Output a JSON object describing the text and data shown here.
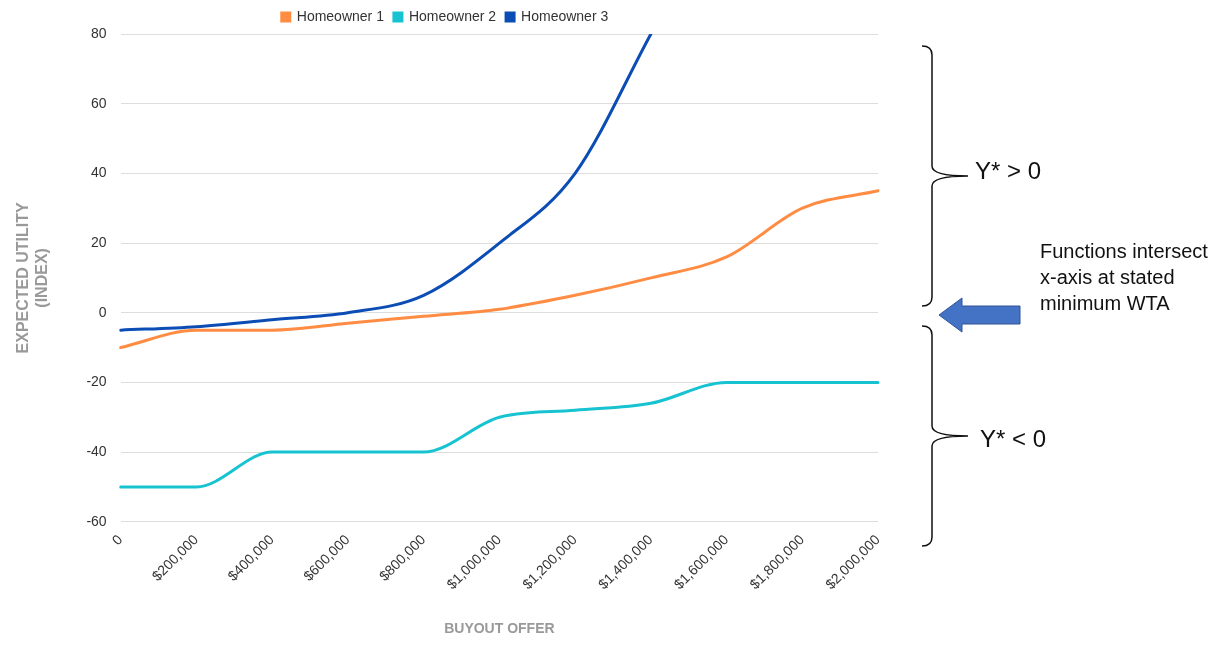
{
  "chart_data": {
    "type": "line",
    "xlabel": "BUYOUT OFFER",
    "ylabel": "EXPECTED UTILITY\n(INDEX)",
    "categories": [
      "0",
      "$200,000",
      "$400,000",
      "$600,000",
      "$800,000",
      "$1,000,000",
      "$1,200,000",
      "$1,400,000",
      "$1,600,000",
      "$1,800,000",
      "$2,000,000"
    ],
    "series": [
      {
        "name": "Homeowner 1",
        "color": "#ff8c42",
        "values": [
          -10,
          -5,
          -5,
          -3,
          -1,
          1,
          5,
          10,
          16,
          30,
          35
        ]
      },
      {
        "name": "Homeowner 2",
        "color": "#17c3d0",
        "values": [
          -50,
          -50,
          -40,
          -40,
          -40,
          -30,
          -28,
          -26,
          -20,
          -20,
          -20
        ]
      },
      {
        "name": "Homeowner 3",
        "color": "#0b4db5",
        "values": [
          -5,
          -4,
          -2,
          0,
          5,
          20,
          40,
          80,
          null,
          null,
          null
        ]
      }
    ],
    "ylim": [
      -60,
      80
    ],
    "yticks": [
      -60,
      -40,
      -20,
      0,
      20,
      40,
      60,
      80
    ],
    "grid": "y",
    "legend": "top",
    "marker": "none",
    "annotations": [
      "Y* > 0",
      "Functions intersect x-axis at stated minimum WTA",
      "Y* < 0"
    ]
  }
}
